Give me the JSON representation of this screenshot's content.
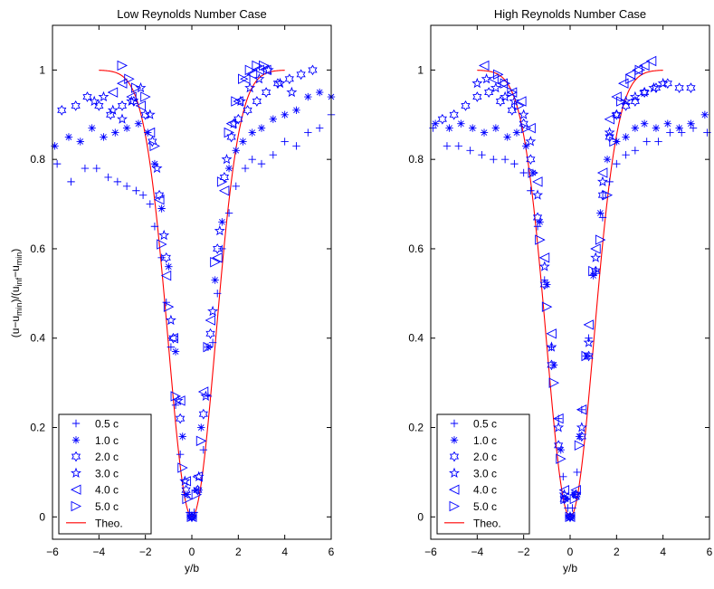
{
  "figure": {
    "ylabel_main": "(u−u",
    "ylabel_sub1": "min",
    "ylabel_mid": ")/(u",
    "ylabel_sub2": "inf",
    "ylabel_mid2": "−u",
    "ylabel_sub3": "min",
    "ylabel_end": ")",
    "marker_color": "#0000ff",
    "theory_color": "#ff0000"
  },
  "chart_data": [
    {
      "type": "scatter",
      "title": "Low Reynolds Number Case",
      "xlabel": "y/b",
      "ylabel": "(u-u_min)/(u_inf-u_min)",
      "xlim": [
        -6,
        6
      ],
      "ylim": [
        -0.05,
        1.1
      ],
      "xticks": [
        "−6",
        "−4",
        "−2",
        "0",
        "2",
        "4",
        "6"
      ],
      "yticks": [
        "0",
        "0.2",
        "0.4",
        "0.6",
        "0.8",
        "1"
      ],
      "grid": false,
      "legend_position": "bottom-left",
      "series": [
        {
          "name": "0.5 c",
          "marker": "plus",
          "x": [
            -5.8,
            -5.2,
            -4.6,
            -4.1,
            -3.6,
            -3.2,
            -2.8,
            -2.4,
            -2.1,
            -1.8,
            -1.6,
            -1.3,
            -1.1,
            -0.9,
            -0.7,
            -0.5,
            -0.3,
            -0.1,
            0.0,
            0.1,
            0.3,
            0.5,
            0.7,
            0.9,
            1.1,
            1.3,
            1.6,
            1.9,
            2.3,
            2.6,
            3.0,
            3.5,
            4.0,
            4.5,
            5.0,
            5.5,
            6.0
          ],
          "y": [
            0.79,
            0.75,
            0.78,
            0.78,
            0.76,
            0.75,
            0.74,
            0.73,
            0.72,
            0.7,
            0.65,
            0.58,
            0.48,
            0.38,
            0.25,
            0.14,
            0.05,
            0.01,
            0.0,
            0.01,
            0.06,
            0.15,
            0.27,
            0.39,
            0.5,
            0.6,
            0.68,
            0.74,
            0.78,
            0.8,
            0.79,
            0.81,
            0.84,
            0.83,
            0.86,
            0.87,
            0.9
          ]
        },
        {
          "name": "1.0 c",
          "marker": "asterisk",
          "x": [
            -5.9,
            -5.3,
            -4.8,
            -4.3,
            -3.8,
            -3.3,
            -2.8,
            -2.3,
            -1.9,
            -1.6,
            -1.3,
            -1.0,
            -0.7,
            -0.4,
            -0.2,
            0.0,
            0.2,
            0.4,
            0.7,
            1.0,
            1.3,
            1.6,
            1.9,
            2.2,
            2.6,
            3.0,
            3.5,
            4.0,
            4.5,
            5.0,
            5.5,
            6.0
          ],
          "y": [
            0.83,
            0.85,
            0.84,
            0.87,
            0.85,
            0.86,
            0.87,
            0.88,
            0.86,
            0.79,
            0.69,
            0.56,
            0.37,
            0.18,
            0.05,
            0.0,
            0.06,
            0.2,
            0.38,
            0.53,
            0.66,
            0.78,
            0.82,
            0.84,
            0.86,
            0.87,
            0.89,
            0.9,
            0.91,
            0.94,
            0.95,
            0.94
          ]
        },
        {
          "name": "2.0 c",
          "marker": "hexagram",
          "x": [
            -5.6,
            -5.0,
            -4.5,
            -4.0,
            -3.5,
            -3.0,
            -2.5,
            -2.0,
            -1.7,
            -1.4,
            -1.1,
            -0.8,
            -0.5,
            -0.25,
            0.0,
            0.25,
            0.5,
            0.8,
            1.1,
            1.4,
            1.7,
            2.0,
            2.4,
            2.8,
            3.2,
            3.7,
            4.2,
            4.7,
            5.2
          ],
          "y": [
            0.91,
            0.92,
            0.94,
            0.92,
            0.9,
            0.92,
            0.93,
            0.9,
            0.84,
            0.72,
            0.58,
            0.4,
            0.22,
            0.06,
            0.0,
            0.06,
            0.23,
            0.41,
            0.6,
            0.76,
            0.85,
            0.89,
            0.91,
            0.93,
            0.95,
            0.97,
            0.98,
            0.99,
            1.0
          ]
        },
        {
          "name": "3.0 c",
          "marker": "pentagram",
          "x": [
            -4.2,
            -3.8,
            -3.4,
            -3.0,
            -2.6,
            -2.2,
            -1.8,
            -1.5,
            -1.2,
            -0.9,
            -0.6,
            -0.3,
            0.0,
            0.3,
            0.6,
            0.9,
            1.2,
            1.5,
            1.8,
            2.1,
            2.5,
            2.9,
            3.3,
            3.8,
            4.3
          ],
          "y": [
            0.93,
            0.94,
            0.91,
            0.89,
            0.93,
            0.96,
            0.9,
            0.78,
            0.63,
            0.44,
            0.26,
            0.08,
            0.0,
            0.09,
            0.27,
            0.46,
            0.64,
            0.8,
            0.88,
            0.93,
            0.96,
            0.98,
            1.0,
            0.97,
            0.95
          ]
        },
        {
          "name": "4.0 c",
          "marker": "triangle-left",
          "x": [
            -3.4,
            -3.0,
            -2.6,
            -2.2,
            -1.8,
            -1.4,
            -1.1,
            -0.8,
            -0.5,
            -0.25,
            0.0,
            0.25,
            0.5,
            0.8,
            1.1,
            1.4,
            1.7,
            2.0,
            2.3,
            2.6,
            2.9,
            3.2
          ],
          "y": [
            0.95,
            0.97,
            0.94,
            0.92,
            0.86,
            0.71,
            0.54,
            0.4,
            0.26,
            0.08,
            0.0,
            0.09,
            0.28,
            0.44,
            0.58,
            0.73,
            0.88,
            0.93,
            0.98,
            0.99,
            1.0,
            1.0
          ]
        },
        {
          "name": "5.0 c",
          "marker": "triangle-right",
          "x": [
            -3.0,
            -2.7,
            -2.4,
            -2.0,
            -1.6,
            -1.3,
            -1.0,
            -0.7,
            -0.4,
            -0.2,
            0.0,
            0.2,
            0.4,
            0.7,
            1.0,
            1.3,
            1.6,
            1.9,
            2.2,
            2.5,
            2.8,
            3.1
          ],
          "y": [
            1.01,
            0.98,
            0.96,
            0.94,
            0.83,
            0.61,
            0.47,
            0.27,
            0.11,
            0.04,
            0.0,
            0.05,
            0.17,
            0.38,
            0.57,
            0.75,
            0.86,
            0.93,
            0.98,
            1.0,
            1.01,
            1.01
          ]
        },
        {
          "name": "Theo.",
          "marker": "line",
          "x": [
            -3.0,
            3.0
          ],
          "y": [
            1.0,
            1.0
          ]
        }
      ]
    },
    {
      "type": "scatter",
      "title": "High Reynolds Number Case",
      "xlabel": "y/b",
      "ylabel": "",
      "xlim": [
        -6,
        6
      ],
      "ylim": [
        -0.05,
        1.1
      ],
      "xticks": [
        "−6",
        "−4",
        "−2",
        "0",
        "2",
        "4",
        "6"
      ],
      "yticks": [
        "0",
        "0.2",
        "0.4",
        "0.6",
        "0.8",
        "1"
      ],
      "grid": false,
      "legend_position": "bottom-left",
      "series": [
        {
          "name": "0.5 c",
          "marker": "plus",
          "x": [
            -5.9,
            -5.3,
            -4.8,
            -4.3,
            -3.8,
            -3.3,
            -2.8,
            -2.4,
            -2.0,
            -1.7,
            -1.4,
            -1.1,
            -0.8,
            -0.5,
            -0.3,
            -0.1,
            0.0,
            0.1,
            0.3,
            0.5,
            0.8,
            1.1,
            1.4,
            1.7,
            2.0,
            2.4,
            2.8,
            3.3,
            3.8,
            4.3,
            4.8,
            5.3,
            5.9
          ],
          "y": [
            0.87,
            0.83,
            0.83,
            0.82,
            0.81,
            0.8,
            0.8,
            0.79,
            0.77,
            0.73,
            0.65,
            0.53,
            0.38,
            0.22,
            0.09,
            0.02,
            0.0,
            0.02,
            0.1,
            0.24,
            0.4,
            0.55,
            0.67,
            0.75,
            0.79,
            0.81,
            0.82,
            0.84,
            0.84,
            0.86,
            0.86,
            0.87,
            0.86
          ]
        },
        {
          "name": "1.0 c",
          "marker": "asterisk",
          "x": [
            -5.8,
            -5.2,
            -4.7,
            -4.2,
            -3.7,
            -3.2,
            -2.7,
            -2.3,
            -1.9,
            -1.6,
            -1.3,
            -1.0,
            -0.7,
            -0.4,
            -0.2,
            0.0,
            0.2,
            0.4,
            0.7,
            1.0,
            1.3,
            1.6,
            2.0,
            2.4,
            2.8,
            3.2,
            3.7,
            4.2,
            4.7,
            5.2,
            5.8
          ],
          "y": [
            0.88,
            0.87,
            0.88,
            0.87,
            0.86,
            0.87,
            0.85,
            0.86,
            0.83,
            0.77,
            0.66,
            0.52,
            0.34,
            0.15,
            0.04,
            0.0,
            0.05,
            0.18,
            0.36,
            0.54,
            0.68,
            0.8,
            0.84,
            0.85,
            0.87,
            0.88,
            0.87,
            0.88,
            0.87,
            0.88,
            0.9
          ]
        },
        {
          "name": "2.0 c",
          "marker": "hexagram",
          "x": [
            -5.5,
            -5.0,
            -4.5,
            -4.0,
            -3.5,
            -3.0,
            -2.5,
            -2.0,
            -1.7,
            -1.4,
            -1.1,
            -0.8,
            -0.5,
            -0.25,
            0.0,
            0.25,
            0.5,
            0.8,
            1.1,
            1.4,
            1.7,
            2.0,
            2.4,
            2.8,
            3.2,
            3.7,
            4.2,
            4.7,
            5.2
          ],
          "y": [
            0.89,
            0.9,
            0.92,
            0.94,
            0.95,
            0.93,
            0.91,
            0.88,
            0.8,
            0.67,
            0.52,
            0.34,
            0.16,
            0.04,
            0.0,
            0.05,
            0.18,
            0.36,
            0.55,
            0.72,
            0.85,
            0.9,
            0.92,
            0.93,
            0.95,
            0.96,
            0.97,
            0.96,
            0.96
          ]
        },
        {
          "name": "3.0 c",
          "marker": "pentagram",
          "x": [
            -4.0,
            -3.6,
            -3.2,
            -2.8,
            -2.4,
            -2.0,
            -1.7,
            -1.4,
            -1.1,
            -0.8,
            -0.5,
            -0.25,
            0.0,
            0.25,
            0.5,
            0.8,
            1.1,
            1.4,
            1.7,
            2.0,
            2.4,
            2.8,
            3.2,
            3.6,
            4.0
          ],
          "y": [
            0.97,
            0.98,
            0.96,
            0.94,
            0.93,
            0.9,
            0.84,
            0.72,
            0.56,
            0.38,
            0.2,
            0.05,
            0.0,
            0.05,
            0.2,
            0.39,
            0.58,
            0.75,
            0.86,
            0.9,
            0.93,
            0.94,
            0.95,
            0.96,
            0.97
          ]
        },
        {
          "name": "4.0 c",
          "marker": "triangle-left",
          "x": [
            -3.7,
            -3.3,
            -2.9,
            -2.5,
            -2.1,
            -1.7,
            -1.4,
            -1.1,
            -0.8,
            -0.5,
            -0.25,
            0.0,
            0.25,
            0.5,
            0.8,
            1.1,
            1.4,
            1.7,
            2.0,
            2.3,
            2.6,
            2.9,
            3.2,
            3.5
          ],
          "y": [
            1.01,
            0.98,
            0.97,
            0.95,
            0.93,
            0.87,
            0.75,
            0.58,
            0.41,
            0.22,
            0.06,
            0.0,
            0.06,
            0.24,
            0.43,
            0.6,
            0.77,
            0.89,
            0.94,
            0.97,
            0.99,
            1.0,
            1.01,
            1.02
          ]
        },
        {
          "name": "5.0 c",
          "marker": "triangle-right",
          "x": [
            -3.1,
            -2.8,
            -2.5,
            -2.2,
            -1.9,
            -1.6,
            -1.3,
            -1.0,
            -0.7,
            -0.4,
            -0.2,
            0.0,
            0.2,
            0.4,
            0.7,
            1.0,
            1.3,
            1.6,
            1.9,
            2.2,
            2.6,
            3.0
          ],
          "y": [
            0.99,
            0.97,
            0.95,
            0.92,
            0.87,
            0.77,
            0.62,
            0.47,
            0.3,
            0.13,
            0.04,
            0.0,
            0.04,
            0.16,
            0.36,
            0.55,
            0.62,
            0.72,
            0.84,
            0.93,
            0.98,
            1.0
          ]
        },
        {
          "name": "Theo.",
          "marker": "line",
          "x": [
            -3.0,
            3.0
          ],
          "y": [
            1.0,
            1.0
          ]
        }
      ]
    }
  ]
}
